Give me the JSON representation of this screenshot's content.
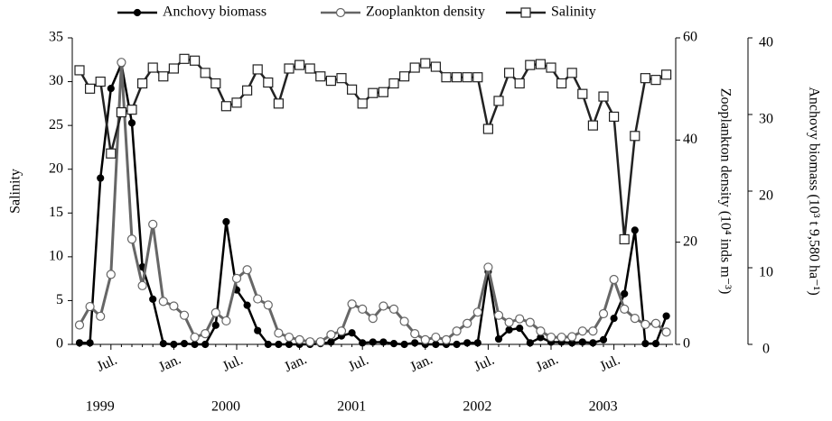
{
  "chart_data": {
    "type": "line",
    "categories": [
      null,
      null,
      null,
      "Jul.",
      null,
      null,
      null,
      null,
      null,
      "Jan.",
      null,
      null,
      null,
      null,
      null,
      "Jul.",
      null,
      null,
      null,
      null,
      null,
      "Jan.",
      null,
      null,
      null,
      null,
      null,
      "Jul.",
      null,
      null,
      null,
      null,
      null,
      "Jan.",
      null,
      null,
      null,
      null,
      null,
      "Jul.",
      null,
      null,
      null,
      null,
      null,
      "Jan.",
      null,
      null,
      null,
      null,
      null,
      "Jul.",
      null,
      null,
      null,
      null,
      null
    ],
    "year_labels": [
      "1999",
      "2000",
      "2001",
      "2002",
      "2003"
    ],
    "ylabel": "Salinity",
    "y2label": "Zooplankton density (10⁴ inds m⁻³)",
    "y3label": "Anchovy biomass (10³ t 9,580 ha⁻¹)",
    "ylim": [
      0,
      35
    ],
    "yticks": [
      0,
      5,
      10,
      15,
      20,
      25,
      30,
      35
    ],
    "y2lim": [
      0,
      60
    ],
    "y2ticks": [
      0,
      20,
      40,
      60
    ],
    "y3lim": [
      0,
      40
    ],
    "y3ticks": [
      0,
      10,
      20,
      30,
      40
    ],
    "series": [
      {
        "name": "Anchovy biomass",
        "color": "#000000",
        "marker": "filled-circle",
        "axis": "y3",
        "values": [
          0.2,
          0.2,
          21.7,
          33.4,
          36.6,
          28.9,
          10.1,
          5.9,
          0.1,
          0,
          0.1,
          0,
          0,
          2.5,
          16,
          7.1,
          5.1,
          1.8,
          0,
          0,
          0,
          0,
          0,
          0.1,
          0.3,
          1.1,
          1.5,
          0.2,
          0.3,
          0.3,
          0.1,
          0,
          0.2,
          0,
          0,
          0,
          0,
          0.2,
          0.2,
          9.5,
          0.7,
          1.9,
          2.1,
          0.2,
          0.9,
          0.3,
          0.3,
          0.2,
          0.3,
          0.2,
          0.6,
          3.4,
          6.6,
          14.9,
          0.1,
          0.1,
          3.7
        ]
      },
      {
        "name": "Zooplankton density",
        "color": "#666666",
        "marker": "open-circle",
        "axis": "y2",
        "values": [
          3.8,
          7.4,
          5.5,
          13.7,
          55.2,
          20.6,
          11.5,
          23.5,
          8.4,
          7.5,
          5.7,
          1.4,
          2.1,
          6.2,
          4.6,
          12.9,
          14.6,
          8.9,
          7.7,
          2.2,
          1.4,
          0.9,
          0.5,
          0.5,
          1.9,
          2.6,
          7.9,
          6.9,
          5.1,
          7.5,
          6.9,
          4.5,
          2.1,
          0.9,
          1.4,
          0.9,
          2.6,
          4.1,
          6.3,
          15.1,
          5.7,
          4.3,
          5,
          4.3,
          2.6,
          1.4,
          1.4,
          1.5,
          2.6,
          2.6,
          6,
          12.7,
          6.9,
          5.1,
          3.9,
          4.1,
          2.4
        ]
      },
      {
        "name": "Salinity",
        "color": "#222222",
        "marker": "open-square",
        "axis": "y",
        "values": [
          31.3,
          29.2,
          30,
          21.8,
          26.5,
          26.8,
          29.8,
          31.6,
          30.6,
          31.5,
          32.6,
          32.4,
          31,
          29.8,
          27.2,
          27.6,
          29,
          31.4,
          29.9,
          27.5,
          31.5,
          31.9,
          31.5,
          30.6,
          30.1,
          30.4,
          29.1,
          27.5,
          28.7,
          28.8,
          29.8,
          30.6,
          31.6,
          32.1,
          31.7,
          30.5,
          30.5,
          30.5,
          30.5,
          24.6,
          27.8,
          31,
          29.8,
          31.9,
          32,
          31.6,
          29.8,
          31,
          28.6,
          25,
          28.3,
          26,
          12,
          23.8,
          30.4,
          30.2,
          30.8
        ]
      }
    ]
  }
}
